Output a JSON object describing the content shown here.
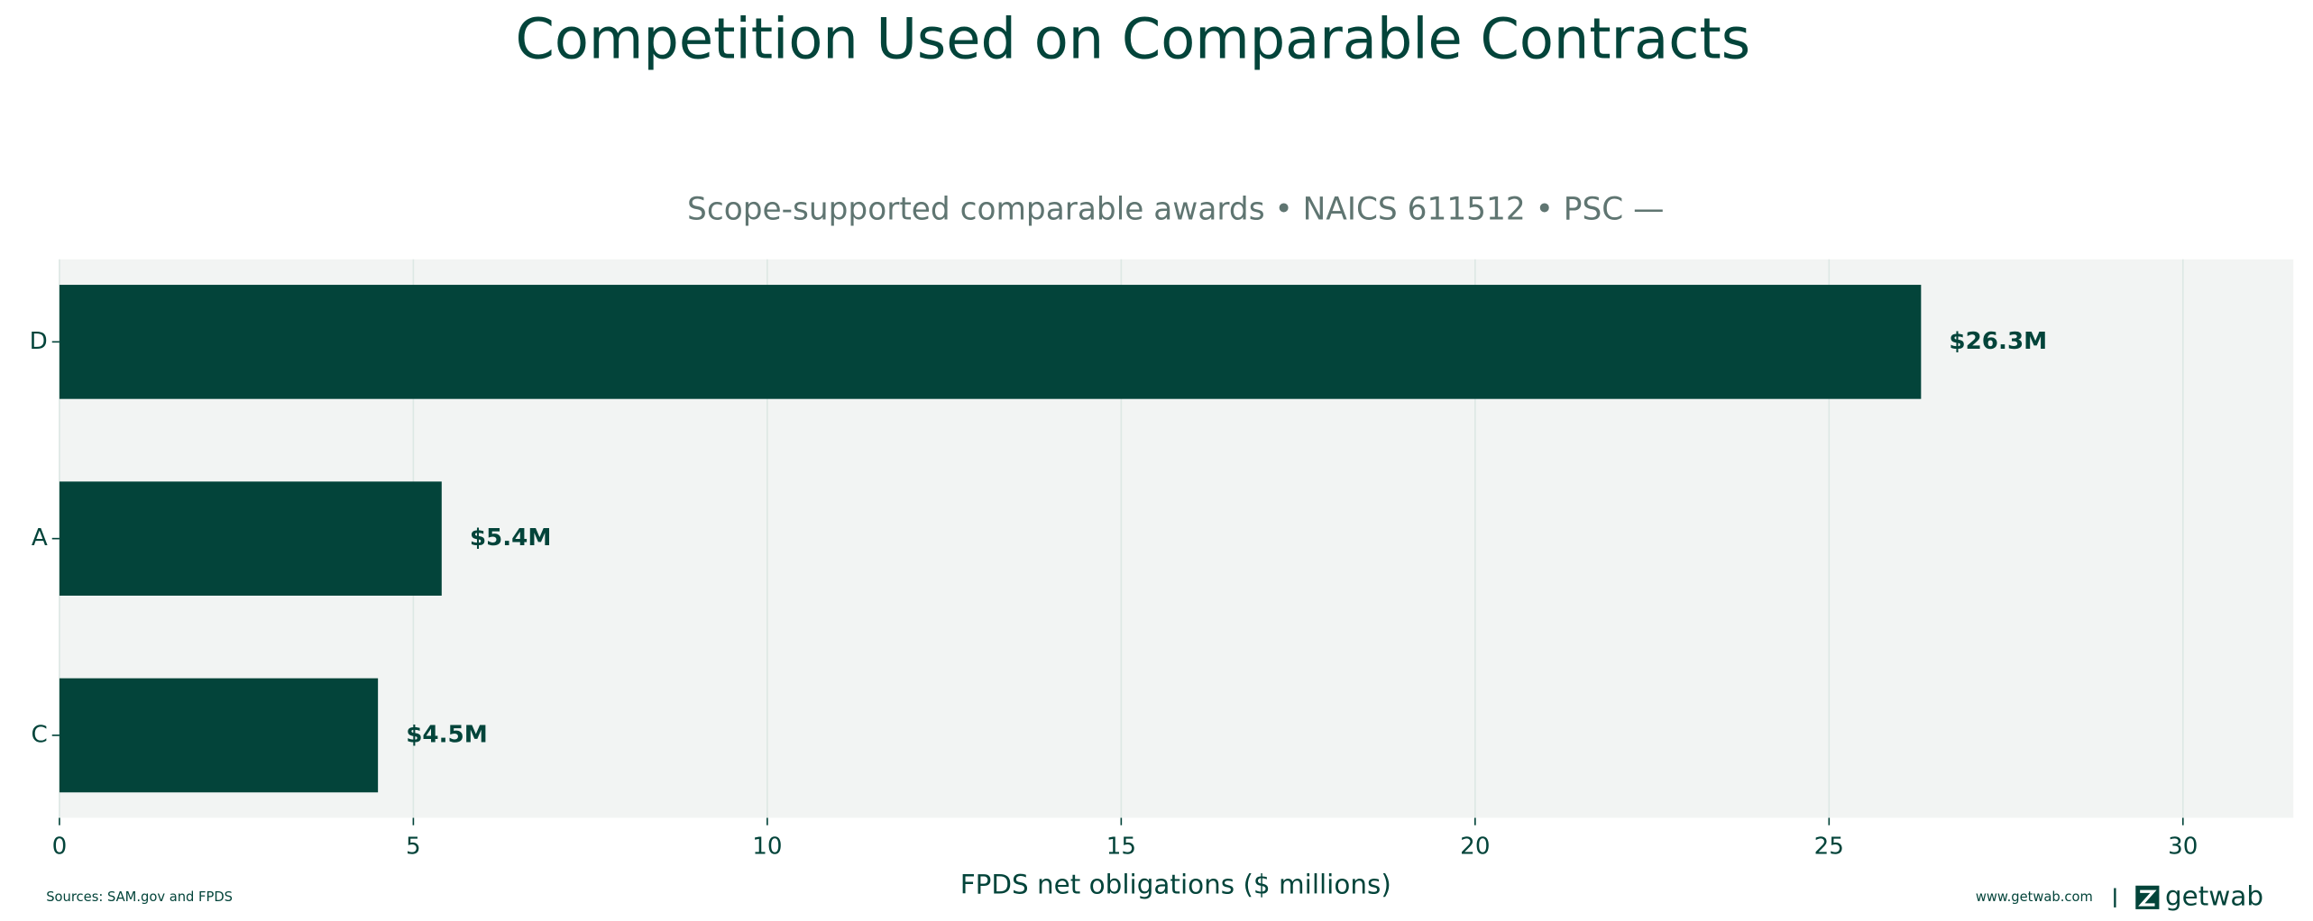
{
  "chart_data": {
    "type": "bar",
    "orientation": "horizontal",
    "title": "Competition Used on Comparable Contracts",
    "subtitle": "Scope-supported comparable awards • NAICS 611512 • PSC —",
    "x_label": "FPDS net obligations ($ millions)",
    "categories": [
      "D",
      "A",
      "C"
    ],
    "values": [
      26.3,
      5.4,
      4.5
    ],
    "value_labels": [
      "$26.3M",
      "$5.4M",
      "$4.5M"
    ],
    "color": "#03443a",
    "xlim": [
      0,
      31.56
    ],
    "xticks": [
      0,
      5,
      10,
      15,
      20,
      25,
      30
    ],
    "grid": true,
    "source": "Sources: SAM.gov and FPDS",
    "website": "www.getwab.com",
    "brand": "getwab"
  }
}
